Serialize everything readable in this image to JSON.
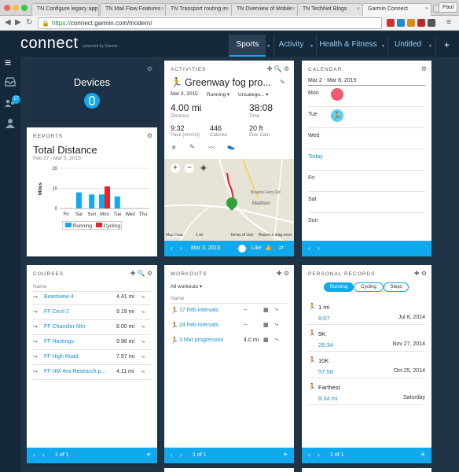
{
  "browser": {
    "tabs": [
      {
        "label": "TN Configure legacy app"
      },
      {
        "label": "TN Mail Flow Features"
      },
      {
        "label": "TN Transport routing in"
      },
      {
        "label": "TN Overview of Mobile"
      },
      {
        "label": "TN TechNet Blogs"
      },
      {
        "label": "Garmin Connect"
      }
    ],
    "user": "Paul",
    "url_scheme": "https://",
    "url_rest": "connect.garmin.com/modern/"
  },
  "app": {
    "logo": "connect",
    "logo_sub": "powered by Garmin",
    "nav": [
      "Sports",
      "Activity",
      "Health & Fitness",
      "Untitled"
    ],
    "plus": "+",
    "badge": "17"
  },
  "devices": {
    "title": "Devices"
  },
  "reports": {
    "header": "REPORTS",
    "title": "Total Distance",
    "range": "Feb 27 - Mar 5, 2015"
  },
  "chart_data": {
    "type": "bar",
    "categories": [
      "Fri",
      "Sat",
      "Sun",
      "Mon",
      "Tue",
      "Wed",
      "Thu"
    ],
    "series": [
      {
        "name": "Running",
        "color": "#11a9ed",
        "values": [
          0,
          8,
          7,
          7,
          6,
          0,
          0
        ]
      },
      {
        "name": "Cycling",
        "color": "#e8222d",
        "values": [
          0,
          0,
          0,
          11,
          0,
          0,
          0
        ]
      }
    ],
    "ylabel": "Miles",
    "ylim": [
      0,
      20
    ],
    "yticks": [
      "20",
      "10",
      "0"
    ],
    "legend": "bottom"
  },
  "activities": {
    "header": "ACTIVITIES",
    "name": "Greenway fog pro...",
    "date": "Mar 3, 2015",
    "type": "Running",
    "category": "Uncatego...",
    "distance": "4.00 mi",
    "distance_label": "Distance",
    "time": "38:08",
    "time_label": "Time",
    "pace": "9:32",
    "pace_label": "Pace (min/mi)",
    "calories": "446",
    "calories_label": "Calories",
    "elev": "20 ft",
    "elev_label": "Elev Gain",
    "map_place": "Madison",
    "map_street": "Browns Ferry Rd",
    "map_attrib": "Map Data",
    "map_scale": "1 mi",
    "map_terms": "Terms of Use",
    "map_report": "Report a map error",
    "footer_date": "Mar 3, 2015",
    "like": "Like"
  },
  "calendar": {
    "header": "CALENDAR",
    "range": "Mar 2 - Mar 8, 2015",
    "days": [
      "Mon",
      "Tue",
      "Wed",
      "Today",
      "Fri",
      "Sat",
      "Sun"
    ]
  },
  "courses": {
    "header": "COURSES",
    "col": "Name",
    "rows": [
      {
        "name": "Beastview 4",
        "dist": "4.41 mi"
      },
      {
        "name": "FF Cecil 2",
        "dist": "9.19 mi"
      },
      {
        "name": "FF Chandler Mtn",
        "dist": "8.00 mi"
      },
      {
        "name": "FF Hastings",
        "dist": "9.98 mi"
      },
      {
        "name": "FF High Road",
        "dist": "7.57 mi"
      },
      {
        "name": "FF HM 4mi Research p...",
        "dist": "4.11 mi"
      }
    ],
    "pager": "1 of 1"
  },
  "workouts": {
    "header": "WORKOUTS",
    "filter": "All workouts",
    "col": "Name",
    "rows": [
      {
        "name": "17 Feb intervals",
        "dist": "--"
      },
      {
        "name": "24 Feb Intervals",
        "dist": "--"
      },
      {
        "name": "3 Mar progression",
        "dist": "4.0 mi"
      }
    ],
    "pager": "1 of 1"
  },
  "records": {
    "header": "PERSONAL RECORDS",
    "tabs": [
      "Running",
      "Cycling",
      "Steps"
    ],
    "rows": [
      {
        "label": "1 mi",
        "value": "8:07",
        "date": "Jul 8, 2014"
      },
      {
        "label": "5K",
        "value": "26:34",
        "date": "Nov 27, 2014"
      },
      {
        "label": "10K",
        "value": "57:56",
        "date": "Oct 25, 2014"
      },
      {
        "label": "Farthest",
        "value": "8.34 mi",
        "date": "Saturday"
      }
    ],
    "pager": "1 of 1"
  }
}
